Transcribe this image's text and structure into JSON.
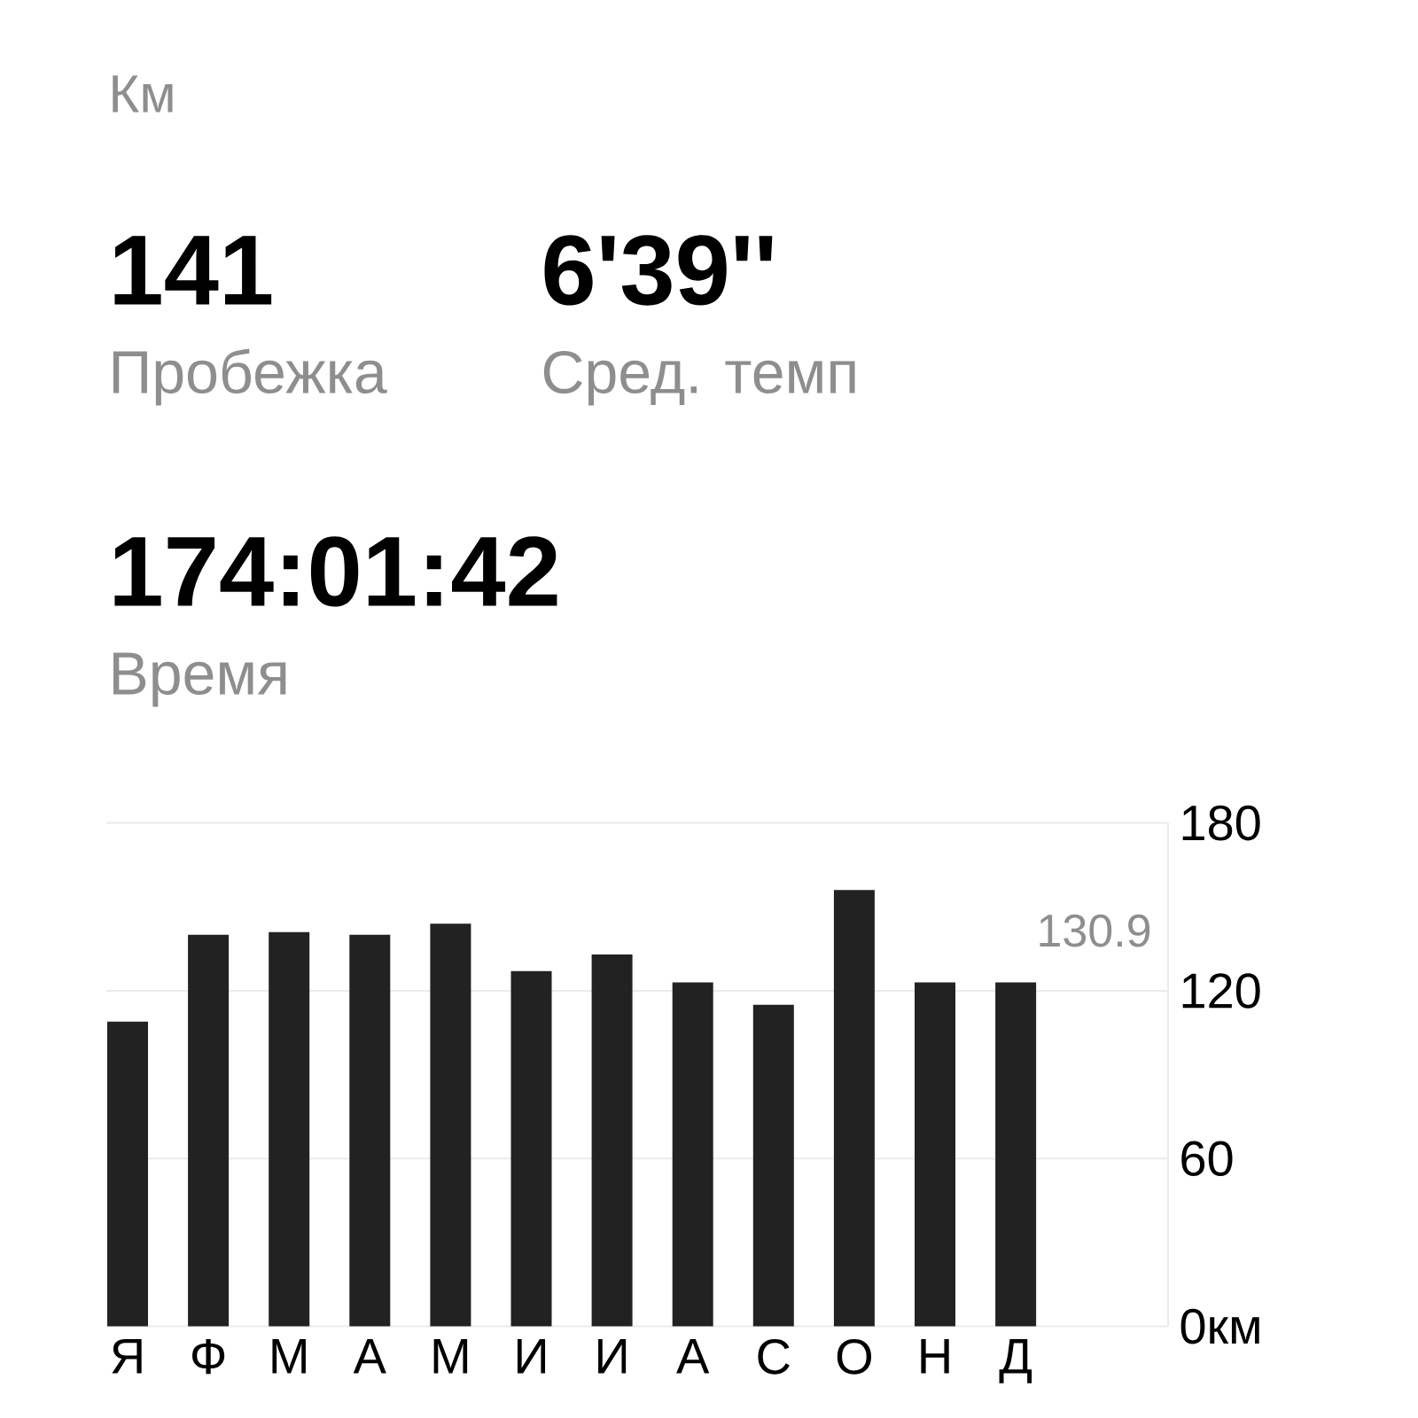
{
  "chart_data": {
    "type": "bar",
    "title": "Км",
    "annotations": [
      "141",
      "Пробежка",
      "6'39''",
      "Сред. темп",
      "174:01:42",
      "Время",
      "130.9"
    ],
    "categories": [
      "Я",
      "Ф",
      "М",
      "А",
      "М",
      "И",
      "И",
      "А",
      "С",
      "О",
      "Н",
      "Д"
    ],
    "values": [
      109,
      140,
      141,
      140,
      144,
      127,
      133,
      123,
      115,
      156,
      123,
      123
    ],
    "color": "#222222",
    "ylim": [
      0,
      180
    ],
    "yticks": [
      {
        "value": 0,
        "label": "0км"
      },
      60,
      120,
      180
    ],
    "grid": "y"
  }
}
